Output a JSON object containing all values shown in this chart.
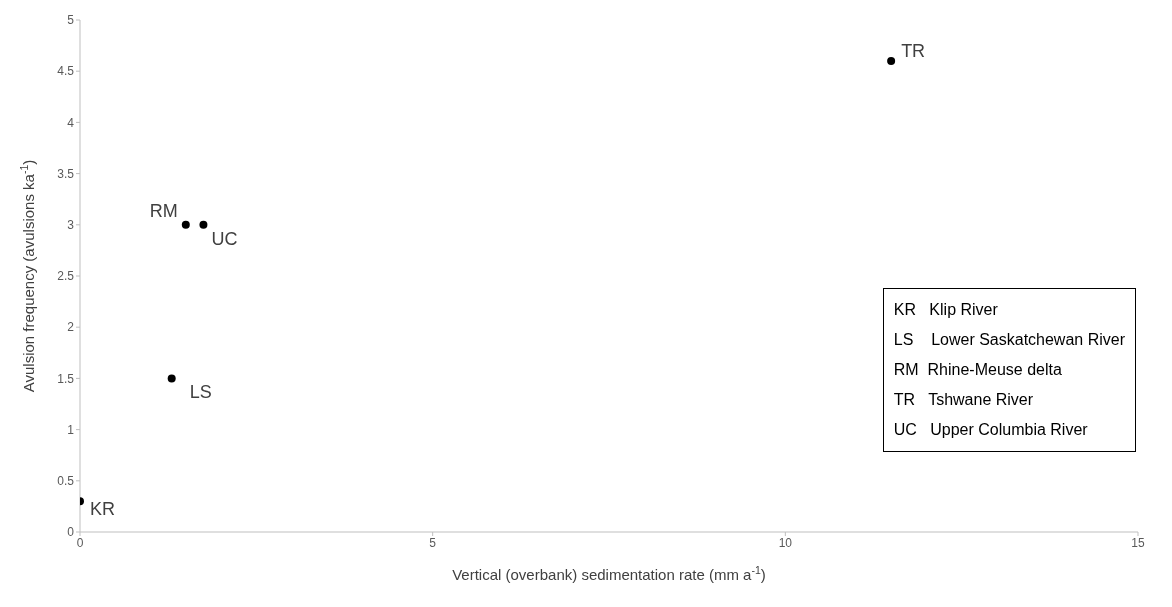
{
  "chart_data": {
    "type": "scatter",
    "xlabel": "Vertical (overbank) sedimentation rate (mm a$^{-1}$)",
    "ylabel": "Avulsion frequency (avulsions ka$^{-1}$)",
    "x": [
      0,
      1.3,
      1.5,
      1.75,
      11.5
    ],
    "values": [
      0.3,
      1.5,
      3,
      3,
      4.6
    ],
    "color": "#000000",
    "marker": "circle",
    "grid": false,
    "xlim": [
      0,
      15
    ],
    "xticks": [
      0,
      5,
      10,
      15
    ],
    "ylim": [
      0,
      5
    ],
    "yticks": [
      0,
      0.5,
      1,
      1.5,
      2,
      2.5,
      3,
      3.5,
      4,
      4.5,
      5
    ],
    "annotations": [
      {
        "text": "KR",
        "x": 0,
        "y": 0.3
      },
      {
        "text": "LS",
        "x": 1.3,
        "y": 1.5
      },
      {
        "text": "RM",
        "x": 1.5,
        "y": 3
      },
      {
        "text": "UC",
        "x": 1.75,
        "y": 3
      },
      {
        "text": "TR",
        "x": 11.5,
        "y": 4.6
      },
      "KR   Klip River",
      "LS    Lower Saskatchewan River",
      "RM  Rhine-Meuse delta",
      "TR   Tshwane River",
      "UC   Upper Columbia River"
    ]
  }
}
